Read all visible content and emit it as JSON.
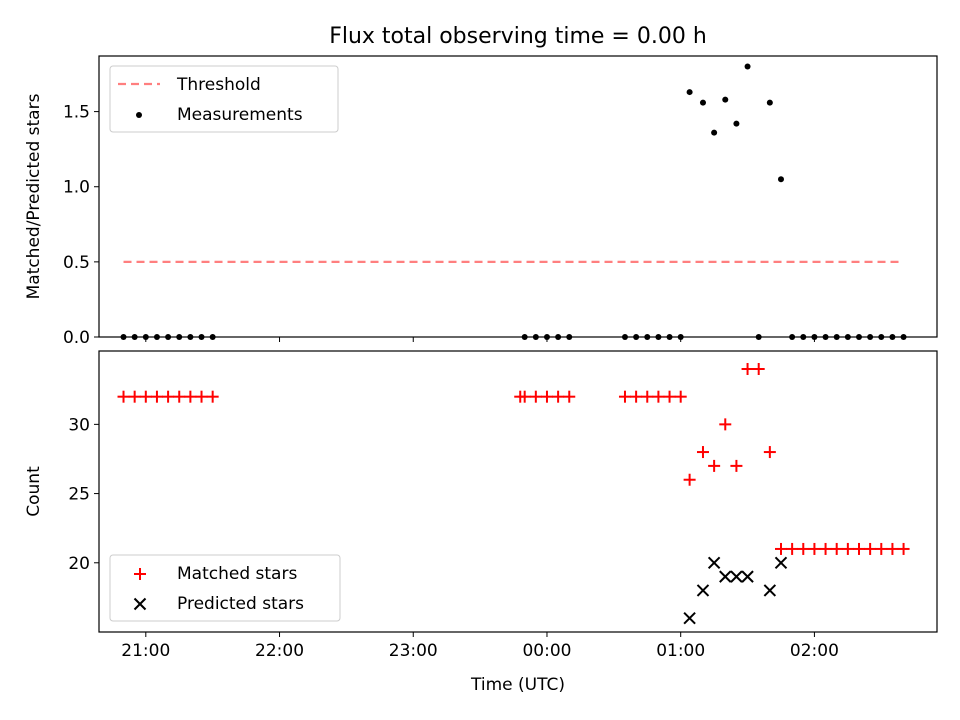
{
  "title": "Flux total observing time = 0.00 h",
  "chart_data": [
    {
      "type": "scatter",
      "ylabel": "Matched/Predicted stars",
      "xlabel": "",
      "xlim": [
        "20:39",
        "02:55"
      ],
      "ylim": [
        0,
        1.87
      ],
      "yticks": [
        "0.0",
        "0.5",
        "1.0",
        "1.5"
      ],
      "yticks_values": [
        0,
        0.5,
        1.0,
        1.5
      ],
      "legend_position": "upper-left",
      "series": [
        {
          "name": "Threshold",
          "kind": "dashed-line",
          "color": "#ff7f7f",
          "x": [
            "20:50",
            "02:38"
          ],
          "y": [
            0.5,
            0.5
          ]
        },
        {
          "name": "Measurements",
          "kind": "scatter",
          "color": "#000000",
          "x": [
            "20:50",
            "20:55",
            "21:00",
            "21:05",
            "21:10",
            "21:15",
            "21:20",
            "21:25",
            "21:30",
            "23:50",
            "23:55",
            "00:00",
            "00:05",
            "00:10",
            "00:35",
            "00:40",
            "00:45",
            "00:50",
            "00:55",
            "01:00",
            "01:04",
            "01:10",
            "01:15",
            "01:20",
            "01:25",
            "01:30",
            "01:35",
            "01:40",
            "01:45",
            "01:50",
            "01:55",
            "02:00",
            "02:05",
            "02:10",
            "02:15",
            "02:20",
            "02:25",
            "02:30",
            "02:35",
            "02:40"
          ],
          "y": [
            0,
            0,
            0,
            0,
            0,
            0,
            0,
            0,
            0,
            0,
            0,
            0,
            0,
            0,
            0,
            0,
            0,
            0,
            0,
            0,
            1.63,
            1.56,
            1.36,
            1.58,
            1.42,
            1.8,
            0,
            1.56,
            1.05,
            0,
            0,
            0,
            0,
            0,
            0,
            0,
            0,
            0,
            0,
            0
          ]
        }
      ]
    },
    {
      "type": "scatter",
      "ylabel": "Count",
      "xlabel": "Time (UTC)",
      "xlim": [
        "20:39",
        "02:55"
      ],
      "ylim": [
        15,
        35.3
      ],
      "yticks": [
        "20",
        "25",
        "30"
      ],
      "yticks_values": [
        20,
        25,
        30
      ],
      "xticks": [
        "21:00",
        "22:00",
        "23:00",
        "00:00",
        "01:00",
        "02:00"
      ],
      "legend_position": "lower-left",
      "series": [
        {
          "name": "Matched stars",
          "marker": "plus",
          "color": "#ff0000",
          "x": [
            "20:50",
            "20:55",
            "21:00",
            "21:05",
            "21:10",
            "21:15",
            "21:20",
            "21:25",
            "21:30",
            "23:48",
            "23:50",
            "23:55",
            "00:00",
            "00:05",
            "00:10",
            "00:35",
            "00:40",
            "00:45",
            "00:50",
            "00:55",
            "01:00",
            "01:04",
            "01:10",
            "01:15",
            "01:20",
            "01:25",
            "01:30",
            "01:35",
            "01:40",
            "01:45",
            "01:50",
            "01:55",
            "02:00",
            "02:05",
            "02:10",
            "02:15",
            "02:20",
            "02:25",
            "02:30",
            "02:35",
            "02:40"
          ],
          "y": [
            32,
            32,
            32,
            32,
            32,
            32,
            32,
            32,
            32,
            32,
            32,
            32,
            32,
            32,
            32,
            32,
            32,
            32,
            32,
            32,
            32,
            26,
            28,
            27,
            30,
            27,
            34,
            34,
            28,
            21,
            21,
            21,
            21,
            21,
            21,
            21,
            21,
            21,
            21,
            21,
            21
          ]
        },
        {
          "name": "Predicted stars",
          "marker": "x",
          "color": "#000000",
          "x": [
            "01:04",
            "01:10",
            "01:15",
            "01:20",
            "01:25",
            "01:30",
            "01:40",
            "01:45"
          ],
          "y": [
            16,
            18,
            20,
            19,
            19,
            19,
            18,
            20
          ]
        }
      ]
    }
  ]
}
